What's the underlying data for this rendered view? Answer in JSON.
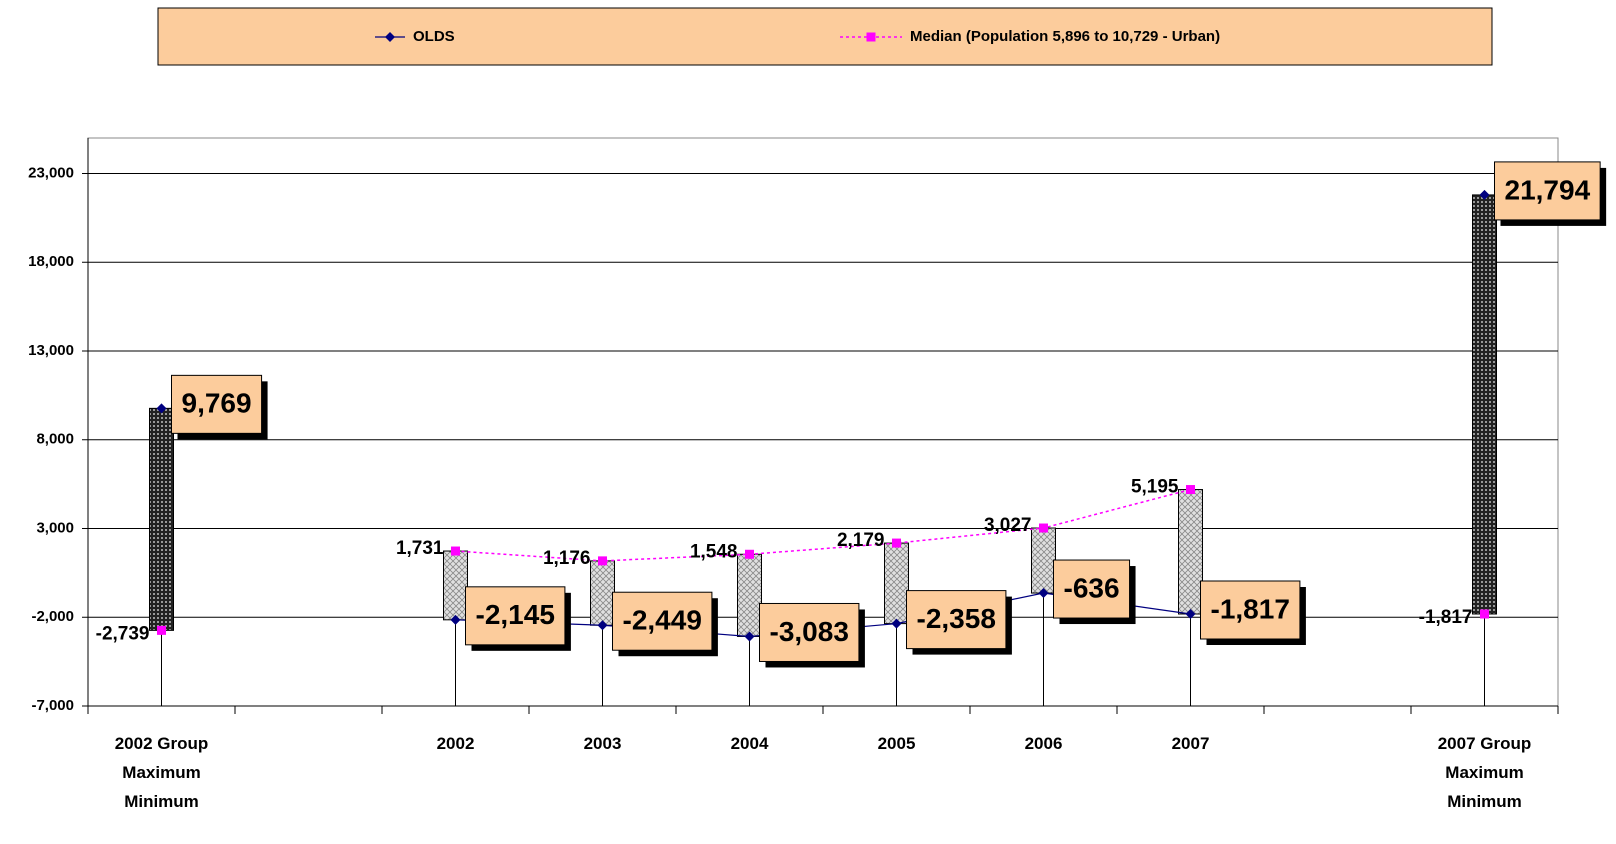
{
  "chart_data": {
    "type": "line",
    "categories": [
      "2002 Group\nMaximum\nMinimum",
      null,
      "2002",
      "2003",
      "2004",
      "2005",
      "2006",
      "2007",
      null,
      "2007 Group\nMaximum\nMinimum"
    ],
    "series": [
      {
        "name": "OLDS",
        "color": "#000080",
        "values": [
          9769,
          null,
          -2145,
          -2449,
          -3083,
          -2358,
          -636,
          -1817,
          null,
          21794
        ],
        "value_labels": [
          "9,769",
          null,
          "-2,145",
          "-2,449",
          "-3,083",
          "-2,358",
          "-636",
          "-1,817",
          null,
          "21,794"
        ]
      },
      {
        "name": "Median (Population 5,896 to 10,729 - Urban)",
        "color": "#ff00ff",
        "values": [
          -2739,
          null,
          1731,
          1176,
          1548,
          2179,
          3027,
          5195,
          null,
          -1817
        ],
        "value_labels": [
          "-2,739",
          null,
          "1,731",
          "1,176",
          "1,548",
          "2,179",
          "3,027",
          "5,195",
          null,
          "-1,817"
        ]
      }
    ],
    "ylim": [
      -7000,
      25000
    ],
    "yticks": [
      {
        "value": -7000,
        "label": "-7,000"
      },
      {
        "value": -2000,
        "label": "-2,000"
      },
      {
        "value": 3000,
        "label": "3,000"
      },
      {
        "value": 8000,
        "label": "8,000"
      },
      {
        "value": 13000,
        "label": "13,000"
      },
      {
        "value": 18000,
        "label": "18,000"
      },
      {
        "value": 23000,
        "label": "23,000"
      }
    ],
    "grid": true
  }
}
